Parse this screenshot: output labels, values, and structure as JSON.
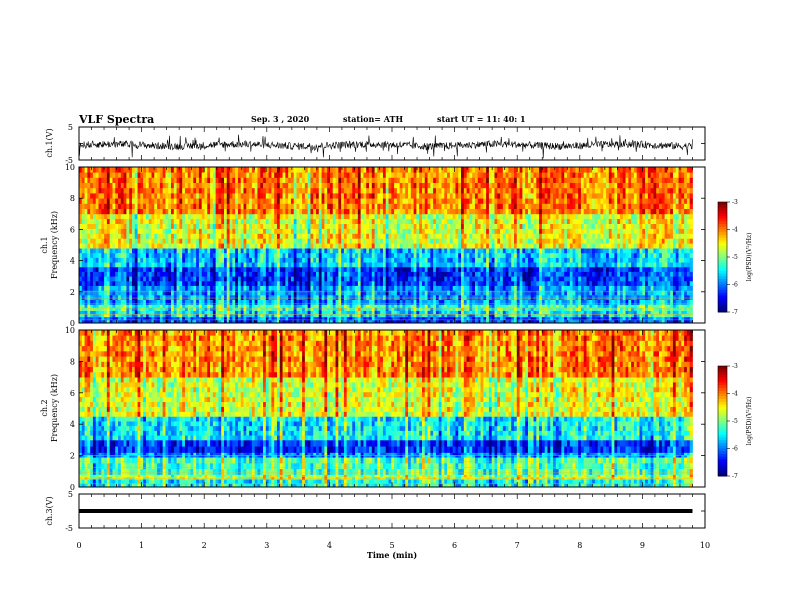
{
  "header": {
    "title": "VLF Spectra",
    "date": "Sep. 3 , 2020",
    "station": "station= ATH",
    "start": "start UT =   11: 40: 1"
  },
  "chart_data": [
    {
      "type": "line",
      "panel": "ch1-waveform",
      "ylabel": "ch.1(V)",
      "ylim": [
        -5,
        5
      ],
      "yticks": [
        "5",
        "-5"
      ],
      "xlim": [
        0,
        10
      ],
      "x_end": 9.8,
      "note": "dense noisy waveform, mostly between -2 and 1 V"
    },
    {
      "type": "heatmap",
      "panel": "ch1-spectrogram",
      "ylabel": "ch.1\nFrequency (kHz)",
      "ylim": [
        0,
        10
      ],
      "yticks": [
        "0",
        "2",
        "4",
        "6",
        "8",
        "10"
      ],
      "xlim": [
        0,
        10
      ],
      "x_end": 9.8,
      "colorbar": {
        "range": [
          -7,
          -3
        ],
        "ticks": [
          "-3",
          "-4",
          "-5",
          "-6",
          "-7"
        ],
        "label": "log(PSD)(V²/Hz)"
      },
      "bands": [
        {
          "f": [
            0,
            0.4
          ],
          "level": -6.2
        },
        {
          "f": [
            0.4,
            0.8
          ],
          "level": -5.6
        },
        {
          "f": [
            0.8,
            1.2
          ],
          "level": -5.3
        },
        {
          "f": [
            1.2,
            2.4
          ],
          "level": -5.9
        },
        {
          "f": [
            2.4,
            3.6
          ],
          "level": -6.3
        },
        {
          "f": [
            3.6,
            4.8
          ],
          "level": -5.7
        },
        {
          "f": [
            4.8,
            7.0
          ],
          "level": -4.6
        },
        {
          "f": [
            7.0,
            10.0
          ],
          "level": -4.0
        }
      ]
    },
    {
      "type": "heatmap",
      "panel": "ch2-spectrogram",
      "ylabel": "ch.2\nFrequency (kHz)",
      "ylim": [
        0,
        10
      ],
      "yticks": [
        "0",
        "2",
        "4",
        "6",
        "8",
        "10"
      ],
      "xlim": [
        0,
        10
      ],
      "x_end": 9.8,
      "colorbar": {
        "range": [
          -7,
          -3
        ],
        "ticks": [
          "-3",
          "-4",
          "-5",
          "-6",
          "-7"
        ],
        "label": "log(PSD)(V²/Hz)"
      },
      "bands": [
        {
          "f": [
            0,
            0.5
          ],
          "level": -5.4
        },
        {
          "f": [
            0.5,
            0.8
          ],
          "level": -4.8
        },
        {
          "f": [
            0.8,
            1.9
          ],
          "level": -5.2
        },
        {
          "f": [
            1.9,
            2.2
          ],
          "level": -5.9
        },
        {
          "f": [
            2.2,
            3.0
          ],
          "level": -6.3
        },
        {
          "f": [
            3.0,
            4.5
          ],
          "level": -5.5
        },
        {
          "f": [
            4.5,
            7.0
          ],
          "level": -4.6
        },
        {
          "f": [
            7.0,
            10.0
          ],
          "level": -4.0
        }
      ]
    },
    {
      "type": "line",
      "panel": "ch3-waveform",
      "ylabel": "ch.3(V)",
      "ylim": [
        -5,
        5
      ],
      "yticks": [
        "5",
        "-5"
      ],
      "xlim": [
        0,
        10
      ],
      "x_end": 9.8,
      "value": 0,
      "xlabel": "Time (min)",
      "xticks": [
        "0",
        "1",
        "2",
        "3",
        "4",
        "5",
        "6",
        "7",
        "8",
        "9",
        "10"
      ]
    }
  ]
}
